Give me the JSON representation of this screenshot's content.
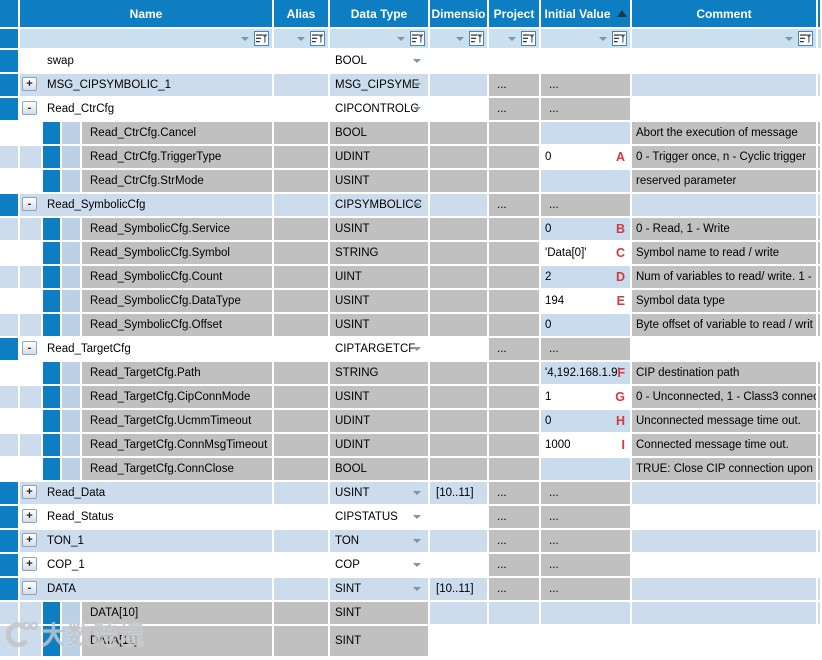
{
  "table": {
    "columns": [
      {
        "key": "sel",
        "label": ""
      },
      {
        "key": "name",
        "label": "Name"
      },
      {
        "key": "alias",
        "label": "Alias"
      },
      {
        "key": "type",
        "label": "Data Type"
      },
      {
        "key": "dim",
        "label": "Dimensio"
      },
      {
        "key": "proj",
        "label": "Project"
      },
      {
        "key": "init",
        "label": "Initial Value"
      },
      {
        "key": "comment",
        "label": "Comment"
      }
    ],
    "sort": {
      "column": "init",
      "direction": "ascending"
    },
    "rows": [
      {
        "kind": "top",
        "shade": "w",
        "expand": null,
        "name": "swap",
        "type": "BOOL",
        "type_dd": true,
        "dim": "",
        "proj": "",
        "init": "",
        "letter": "",
        "init_bg": "",
        "comment": ""
      },
      {
        "kind": "top",
        "shade": "b",
        "expand": "+",
        "name": "MSG_CIPSYMBOLIC_1",
        "type": "MSG_CIPSYME",
        "type_dd": true,
        "dim": "",
        "proj": "...",
        "init": "...",
        "letter": "",
        "init_bg": "",
        "comment": ""
      },
      {
        "kind": "top",
        "shade": "w",
        "expand": "-",
        "name": "Read_CtrCfg",
        "type": "CIPCONTROLC",
        "type_dd": true,
        "dim": "",
        "proj": "...",
        "init": "...",
        "letter": "",
        "init_bg": "",
        "comment": ""
      },
      {
        "kind": "member",
        "shade": "w",
        "name": "Read_CtrCfg.Cancel",
        "type": "BOOL",
        "init": "",
        "letter": "",
        "init_bg": "b",
        "comment": "Abort the execution of message"
      },
      {
        "kind": "member",
        "shade": "b",
        "name": "Read_CtrCfg.TriggerType",
        "type": "UDINT",
        "init": "0",
        "letter": "A",
        "init_bg": "w",
        "comment": "0 - Trigger once, n - Cyclic trigger"
      },
      {
        "kind": "member",
        "shade": "w",
        "name": "Read_CtrCfg.StrMode",
        "type": "USINT",
        "init": "",
        "letter": "",
        "init_bg": "b",
        "comment": "reserved parameter"
      },
      {
        "kind": "top",
        "shade": "b",
        "expand": "-",
        "name": "Read_SymbolicCfg",
        "type": "CIPSYMBOLICC",
        "type_dd": true,
        "dim": "",
        "proj": "...",
        "init": "...",
        "letter": "",
        "init_bg": "",
        "comment": ""
      },
      {
        "kind": "member",
        "shade": "b",
        "name": "Read_SymbolicCfg.Service",
        "type": "USINT",
        "init": "0",
        "letter": "B",
        "init_bg": "b",
        "comment": "0 - Read, 1 - Write"
      },
      {
        "kind": "member",
        "shade": "w",
        "name": "Read_SymbolicCfg.Symbol",
        "type": "STRING",
        "init": "'Data[0]'",
        "letter": "C",
        "init_bg": "w",
        "comment": "Symbol name to read / write"
      },
      {
        "kind": "member",
        "shade": "b",
        "name": "Read_SymbolicCfg.Count",
        "type": "UINT",
        "init": "2",
        "letter": "D",
        "init_bg": "b",
        "comment": "Num of variables to read/ write. 1 -"
      },
      {
        "kind": "member",
        "shade": "w",
        "name": "Read_SymbolicCfg.DataType",
        "type": "USINT",
        "init": "194",
        "letter": "E",
        "init_bg": "w",
        "comment": "Symbol data type"
      },
      {
        "kind": "member",
        "shade": "b",
        "name": "Read_SymbolicCfg.Offset",
        "type": "USINT",
        "init": "0",
        "letter": "",
        "init_bg": "b",
        "comment": "Byte offset of variable to read / writ"
      },
      {
        "kind": "top",
        "shade": "w",
        "expand": "-",
        "name": "Read_TargetCfg",
        "type": "CIPTARGETCF",
        "type_dd": true,
        "dim": "",
        "proj": "...",
        "init": "...",
        "letter": "",
        "init_bg": "",
        "comment": ""
      },
      {
        "kind": "member",
        "shade": "w",
        "name": "Read_TargetCfg.Path",
        "type": "STRING",
        "init": "'4,192.168.1.9'",
        "letter": "F",
        "init_bg": "b",
        "comment": "CIP destination path"
      },
      {
        "kind": "member",
        "shade": "b",
        "name": "Read_TargetCfg.CipConnMode",
        "type": "USINT",
        "init": "1",
        "letter": "G",
        "init_bg": "w",
        "comment": "0 - Unconnected, 1 - Class3 connec"
      },
      {
        "kind": "member",
        "shade": "w",
        "name": "Read_TargetCfg.UcmmTimeout",
        "type": "UDINT",
        "init": "0",
        "letter": "H",
        "init_bg": "b",
        "comment": "Unconnected message time out."
      },
      {
        "kind": "member",
        "shade": "b",
        "name": "Read_TargetCfg.ConnMsgTimeout",
        "type": "UDINT",
        "init": "1000",
        "letter": "I",
        "init_bg": "w",
        "comment": "Connected message time out."
      },
      {
        "kind": "member",
        "shade": "w",
        "name": "Read_TargetCfg.ConnClose",
        "type": "BOOL",
        "init": "",
        "letter": "",
        "init_bg": "b",
        "comment": "TRUE: Close CIP connection upon r"
      },
      {
        "kind": "top",
        "shade": "b",
        "expand": "+",
        "name": "Read_Data",
        "type": "USINT",
        "type_dd": true,
        "dim": "[10..11]",
        "proj": "...",
        "init": "...",
        "letter": "",
        "init_bg": "",
        "comment": ""
      },
      {
        "kind": "top",
        "shade": "w",
        "expand": "+",
        "name": "Read_Status",
        "type": "CIPSTATUS",
        "type_dd": true,
        "dim": "",
        "proj": "...",
        "init": "...",
        "letter": "",
        "init_bg": "",
        "comment": ""
      },
      {
        "kind": "top",
        "shade": "b",
        "expand": "+",
        "name": "TON_1",
        "type": "TON",
        "type_dd": true,
        "dim": "",
        "proj": "...",
        "init": "...",
        "letter": "",
        "init_bg": "",
        "comment": ""
      },
      {
        "kind": "top",
        "shade": "w",
        "expand": "+",
        "name": "COP_1",
        "type": "COP",
        "type_dd": true,
        "dim": "",
        "proj": "...",
        "init": "...",
        "letter": "",
        "init_bg": "",
        "comment": ""
      },
      {
        "kind": "top",
        "shade": "b",
        "expand": "-",
        "name": "DATA",
        "type": "SINT",
        "type_dd": true,
        "dim": "[10..11]",
        "proj": "...",
        "init": "...",
        "letter": "",
        "init_bg": "",
        "comment": ""
      },
      {
        "kind": "element",
        "shade": "b",
        "right": "b",
        "name": "DATA[10]",
        "type": "SINT",
        "comment": ""
      },
      {
        "kind": "element",
        "shade": "b",
        "right": "w",
        "name": "DATA[11]",
        "type": "SINT",
        "comment": ""
      }
    ]
  },
  "watermark": {
    "text": "大数跨境"
  },
  "colors": {
    "header_blue": "#0d7ec2",
    "row_blue": "#ccdcec",
    "filter_blue": "#c8e0ef",
    "cell_gray": "#c0c0c0",
    "init_blue": "#c9dcee",
    "indent_light": "#bcd1e5",
    "arrow_gray": "#7d93a6",
    "annotation_red": "#d4393e",
    "text": "#000000",
    "header_text": "#ffffff"
  }
}
